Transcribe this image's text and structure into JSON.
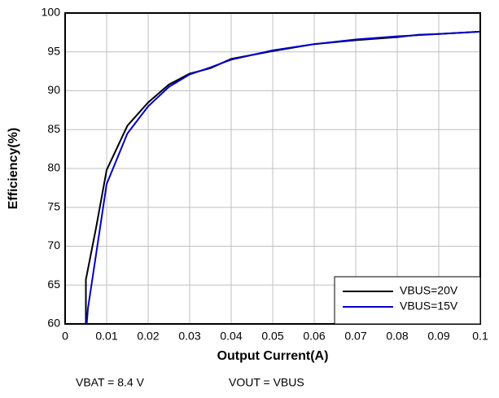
{
  "chart_data": {
    "type": "line",
    "x_label": "Output Current(A)",
    "y_label": "Efficiency(%)",
    "annotations": [
      "VBAT = 8.4 V",
      "VOUT = VBUS"
    ],
    "xlim": [
      0,
      0.1
    ],
    "xticks": [
      0,
      0.01,
      0.02,
      0.03,
      0.04,
      0.05,
      0.06,
      0.07,
      0.08,
      0.09,
      0.1
    ],
    "ylim": [
      60,
      100
    ],
    "yticks": [
      60,
      65,
      70,
      75,
      80,
      85,
      90,
      95,
      100
    ],
    "grid": true,
    "legend": "lower right",
    "series": [
      {
        "name": "VBUS=20V",
        "color": "#000000",
        "x": [
          0.005,
          0.005,
          0.0075,
          0.01,
          0.015,
          0.02,
          0.025,
          0.03,
          0.035,
          0.04,
          0.05,
          0.06,
          0.07,
          0.08,
          0.085,
          0.09,
          0.1
        ],
        "values": [
          60,
          65.7,
          72.5,
          79.8,
          85.5,
          88.5,
          90.8,
          92.2,
          92.9,
          94.1,
          95.1,
          96,
          96.5,
          96.9,
          97.2,
          97.3,
          97.6
        ]
      },
      {
        "name": "VBUS=15V",
        "color": "#0000cc",
        "x": [
          0.0052,
          0.0055,
          0.01,
          0.015,
          0.02,
          0.025,
          0.03,
          0.035,
          0.04,
          0.05,
          0.06,
          0.07,
          0.08,
          0.09,
          0.1
        ],
        "values": [
          60,
          62,
          78,
          84.5,
          88,
          90.5,
          92.1,
          93,
          94,
          95.2,
          96,
          96.6,
          97,
          97.3,
          97.6
        ]
      }
    ]
  }
}
